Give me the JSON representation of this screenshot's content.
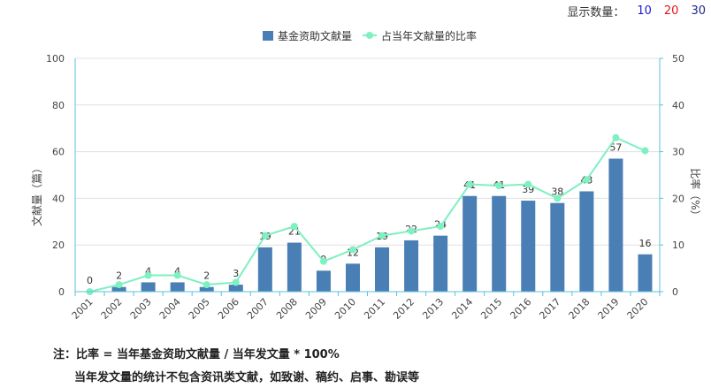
{
  "topbar": {
    "label": "显示数量：",
    "options": [
      "10",
      "20",
      "30"
    ]
  },
  "legend": {
    "series1": "基金资助文献量",
    "series2": "占当年文献量的比率"
  },
  "colors": {
    "bar": "#4a7fb5",
    "line": "#7ef0c1",
    "axis_right": "#5bc0de",
    "grid": "#e0e0e0"
  },
  "chart_data": {
    "type": "bar",
    "categories": [
      "2001",
      "2002",
      "2003",
      "2004",
      "2005",
      "2006",
      "2007",
      "2008",
      "2009",
      "2010",
      "2011",
      "2012",
      "2013",
      "2014",
      "2015",
      "2016",
      "2017",
      "2018",
      "2019",
      "2020"
    ],
    "series": [
      {
        "name": "基金资助文献量",
        "type": "bar",
        "axis": "left",
        "values": [
          0,
          2,
          4,
          4,
          2,
          3,
          19,
          21,
          9,
          12,
          19,
          22,
          24,
          41,
          41,
          39,
          38,
          43,
          57,
          16
        ]
      },
      {
        "name": "占当年文献量的比率",
        "type": "line",
        "axis": "right",
        "values": [
          0,
          1.5,
          3.5,
          3.5,
          1.5,
          2,
          12,
          14,
          6.5,
          9,
          12,
          13,
          14,
          23,
          22.7,
          23,
          20,
          24,
          33,
          30.2
        ]
      }
    ],
    "ylabel": "文献量（篇）",
    "y2label": "比率（%）",
    "ylim": [
      0,
      100
    ],
    "y2lim": [
      0,
      50
    ],
    "yticks": [
      0,
      20,
      40,
      60,
      80,
      100
    ],
    "y2ticks": [
      0,
      10,
      20,
      30,
      40,
      50
    ],
    "grid": true,
    "legend_position": "top-center"
  },
  "notes": {
    "line1": "注：比率 = 当年基金资助文献量 / 当年发文量 * 100%",
    "line2": "当年发文量的统计不包含资讯类文献，如致谢、稿约、启事、勘误等"
  }
}
